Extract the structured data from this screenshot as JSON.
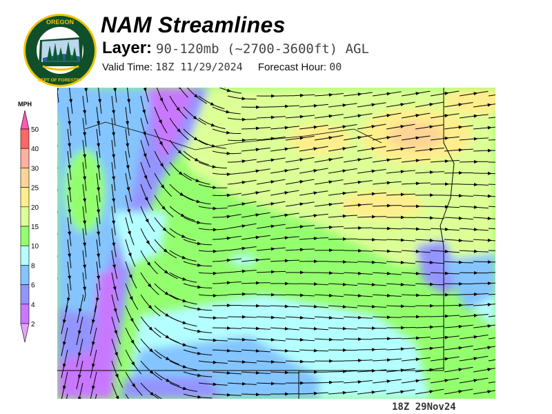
{
  "header": {
    "title": "NAM Streamlines",
    "layer_label": "Layer:",
    "layer_value": "90-120mb (~2700-3600ft) AGL",
    "valid_time_label": "Valid Time:",
    "valid_time_value": "18Z 11/29/2024",
    "forecast_hour_label": "Forecast Hour:",
    "forecast_hour_value": "00"
  },
  "logo": {
    "top_text": "OREGON",
    "bottom_text": "DEPARTMENT OF FORESTRY"
  },
  "colorbar": {
    "unit": "MPH",
    "labels": [
      "50",
      "40",
      "30",
      "25",
      "20",
      "15",
      "10",
      "8",
      "6",
      "4",
      "2"
    ],
    "colors": [
      "#ff6666",
      "#ffb0a0",
      "#ffd496",
      "#ffee8c",
      "#dcff96",
      "#94ff6e",
      "#b4ffff",
      "#84c4ff",
      "#9494ff",
      "#c878ff"
    ],
    "over_color": "#ff5ab4",
    "under_color": "#e8a0ff"
  },
  "footer": {
    "stamp": "18Z 29Nov24"
  }
}
